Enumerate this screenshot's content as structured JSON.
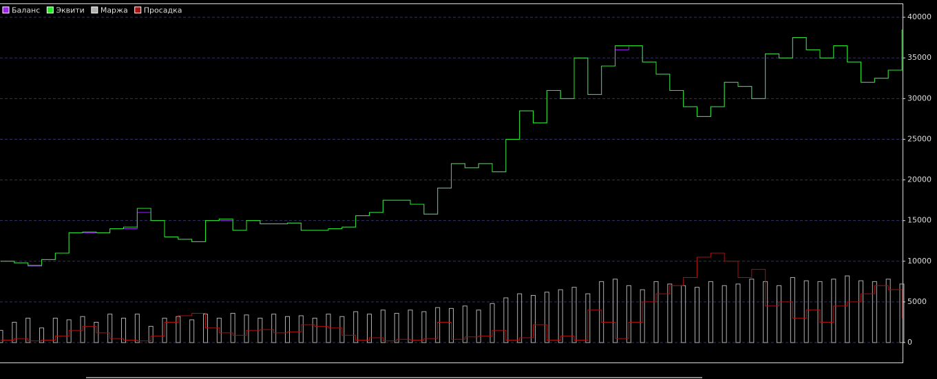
{
  "chart_data": {
    "type": "line",
    "ylim": [
      -2450,
      41700
    ],
    "yticks": [
      0,
      5000,
      10000,
      15000,
      20000,
      25000,
      30000,
      35000,
      40000
    ],
    "grid": true,
    "legend": "top-left",
    "series": [
      {
        "name": "Баланс",
        "color": "#a020f0",
        "type": "line",
        "values": [
          10000,
          9800,
          9400,
          10200,
          11000,
          13500,
          13500,
          13500,
          14000,
          14000,
          16000,
          15000,
          13000,
          12700,
          12400,
          15000,
          15000,
          13800,
          15000,
          14600,
          14600,
          14700,
          13800,
          13800,
          14000,
          14200,
          15600,
          16000,
          17500,
          17500,
          17000,
          15800,
          19000,
          22000,
          21500,
          22000,
          21000,
          25000,
          28500,
          27000,
          31000,
          30000,
          35000,
          30500,
          34000,
          36000,
          36500,
          34500,
          33000,
          31000,
          29000,
          27800,
          29000,
          32000,
          31500,
          30000,
          35500,
          35000,
          37500,
          36000,
          35000,
          36500,
          34500,
          32000,
          32500,
          33500,
          38000
        ]
      },
      {
        "name": "Эквити",
        "color": "#22ee22",
        "type": "line",
        "values": [
          10000,
          9800,
          9500,
          10200,
          11000,
          13500,
          13600,
          13500,
          14000,
          14200,
          16500,
          15000,
          13000,
          12700,
          12400,
          15000,
          15200,
          13800,
          15000,
          14600,
          14600,
          14700,
          13800,
          13800,
          14000,
          14200,
          15600,
          16000,
          17500,
          17500,
          17000,
          15800,
          19000,
          22000,
          21500,
          22000,
          21000,
          25000,
          28500,
          27000,
          31000,
          30000,
          35000,
          30500,
          34000,
          36500,
          36500,
          34500,
          33000,
          31000,
          29000,
          27800,
          29000,
          32000,
          31500,
          30000,
          35500,
          35000,
          37500,
          36000,
          35000,
          36500,
          34500,
          32000,
          32500,
          33500,
          38500
        ]
      },
      {
        "name": "Маржа",
        "color": "#b0b0b0",
        "type": "bar",
        "values": [
          1500,
          2500,
          3000,
          1800,
          3000,
          2800,
          3200,
          2500,
          3500,
          3000,
          3500,
          2000,
          3000,
          3200,
          2800,
          3500,
          3000,
          3600,
          3400,
          3000,
          3500,
          3200,
          3300,
          3000,
          3500,
          3200,
          3800,
          3500,
          4000,
          3600,
          4000,
          3800,
          4300,
          4200,
          4500,
          4000,
          4800,
          5500,
          6000,
          5800,
          6200,
          6500,
          6800,
          6000,
          7500,
          7800,
          7000,
          6500,
          7500,
          7200,
          7000,
          6800,
          7500,
          7000,
          7200,
          7800,
          7500,
          7000,
          8000,
          7600,
          7500,
          7800,
          8200,
          7600,
          7500,
          7800,
          7200
        ]
      },
      {
        "name": "Просадка",
        "color": "#aa1111",
        "type": "line",
        "values": [
          300,
          500,
          200,
          300,
          800,
          1500,
          2000,
          1200,
          500,
          300,
          200,
          800,
          2500,
          3300,
          3600,
          1800,
          1200,
          900,
          1500,
          1600,
          1200,
          1300,
          2200,
          2000,
          1800,
          900,
          300,
          600,
          200,
          400,
          300,
          500,
          2500,
          400,
          700,
          800,
          1500,
          300,
          600,
          2200,
          300,
          800,
          300,
          4000,
          2500,
          500,
          2500,
          5000,
          6000,
          7000,
          8000,
          10500,
          11000,
          10000,
          8000,
          9000,
          4500,
          5000,
          3000,
          4000,
          2500,
          4500,
          5000,
          6000,
          7000,
          6500,
          3000
        ]
      }
    ]
  }
}
